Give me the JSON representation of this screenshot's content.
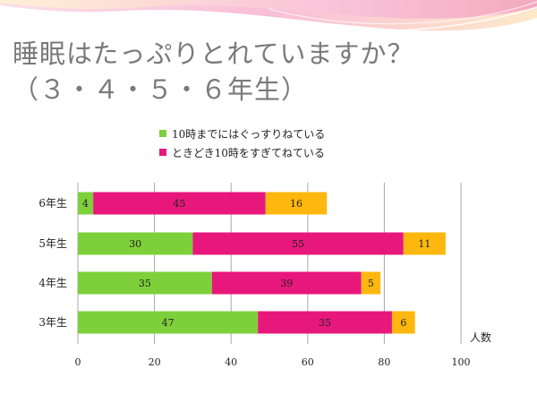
{
  "slide": {
    "title_line1": "睡眠はたっぷりとれていますか？",
    "title_line2": "（３・４・５・６年生）"
  },
  "colors": {
    "series1": "#7ed03a",
    "series2": "#e8177c",
    "series3": "#fdb70e",
    "title": "#7a7a7a"
  },
  "chart_data": {
    "type": "bar",
    "orientation": "horizontal",
    "stacked": true,
    "categories": [
      "6年生",
      "5年生",
      "4年生",
      "3年生"
    ],
    "series": [
      {
        "name": "10時までにはぐっすりねている",
        "values": [
          4,
          30,
          35,
          47
        ]
      },
      {
        "name": "ときどき10時をすぎてねている",
        "values": [
          45,
          55,
          39,
          35
        ]
      },
      {
        "name": "",
        "values": [
          16,
          11,
          5,
          6
        ]
      }
    ],
    "xlim": [
      0,
      100
    ],
    "xticks": [
      "0",
      "20",
      "40",
      "60",
      "80",
      "100"
    ],
    "xlabel": "人数",
    "grid": true,
    "legend_position": "top"
  }
}
